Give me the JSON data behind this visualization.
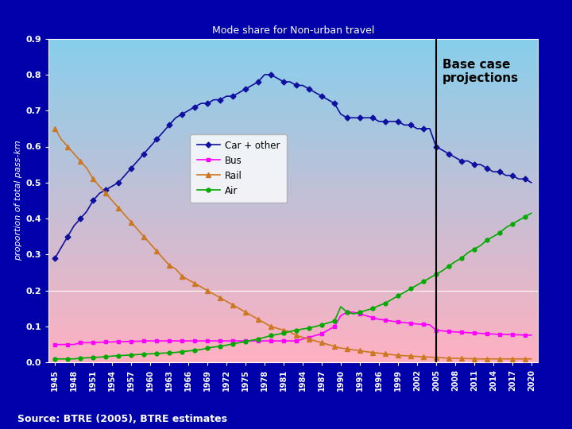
{
  "title": "Mode share for Non-urban travel",
  "ylabel": "proportion of total pass-km",
  "source_text": "Source: BTRE (2005), BTRE estimates",
  "annotation_text": "Base case\nprojections",
  "vertical_line_year": 2005,
  "outer_bg": "#0000AA",
  "plot_bg_top": "#87CEEB",
  "plot_bg_bottom": "#FFB0C0",
  "gradient_split": 0.2,
  "ylim": [
    0.0,
    0.9
  ],
  "yticks": [
    0.0,
    0.1,
    0.2,
    0.3,
    0.4,
    0.5,
    0.6,
    0.7,
    0.8,
    0.9
  ],
  "years": [
    1945,
    1946,
    1947,
    1948,
    1949,
    1950,
    1951,
    1952,
    1953,
    1954,
    1955,
    1956,
    1957,
    1958,
    1959,
    1960,
    1961,
    1962,
    1963,
    1964,
    1965,
    1966,
    1967,
    1968,
    1969,
    1970,
    1971,
    1972,
    1973,
    1974,
    1975,
    1976,
    1977,
    1978,
    1979,
    1980,
    1981,
    1982,
    1983,
    1984,
    1985,
    1986,
    1987,
    1988,
    1989,
    1990,
    1991,
    1992,
    1993,
    1994,
    1995,
    1996,
    1997,
    1998,
    1999,
    2000,
    2001,
    2002,
    2003,
    2004,
    2005,
    2006,
    2007,
    2008,
    2009,
    2010,
    2011,
    2012,
    2013,
    2014,
    2015,
    2016,
    2017,
    2018,
    2019,
    2020
  ],
  "car": [
    0.29,
    0.32,
    0.35,
    0.38,
    0.4,
    0.42,
    0.45,
    0.47,
    0.48,
    0.49,
    0.5,
    0.52,
    0.54,
    0.56,
    0.58,
    0.6,
    0.62,
    0.64,
    0.66,
    0.68,
    0.69,
    0.7,
    0.71,
    0.72,
    0.72,
    0.73,
    0.73,
    0.74,
    0.74,
    0.75,
    0.76,
    0.77,
    0.78,
    0.8,
    0.8,
    0.79,
    0.78,
    0.78,
    0.77,
    0.77,
    0.76,
    0.75,
    0.74,
    0.73,
    0.72,
    0.69,
    0.68,
    0.68,
    0.68,
    0.68,
    0.68,
    0.67,
    0.67,
    0.67,
    0.67,
    0.66,
    0.66,
    0.65,
    0.65,
    0.65,
    0.6,
    0.59,
    0.58,
    0.57,
    0.56,
    0.56,
    0.55,
    0.55,
    0.54,
    0.53,
    0.53,
    0.52,
    0.52,
    0.51,
    0.51,
    0.5
  ],
  "bus": [
    0.05,
    0.05,
    0.05,
    0.05,
    0.055,
    0.055,
    0.055,
    0.056,
    0.057,
    0.057,
    0.058,
    0.058,
    0.059,
    0.059,
    0.06,
    0.06,
    0.06,
    0.06,
    0.06,
    0.06,
    0.06,
    0.06,
    0.06,
    0.06,
    0.06,
    0.06,
    0.06,
    0.06,
    0.06,
    0.06,
    0.06,
    0.06,
    0.06,
    0.06,
    0.06,
    0.06,
    0.06,
    0.06,
    0.06,
    0.065,
    0.07,
    0.075,
    0.08,
    0.09,
    0.1,
    0.13,
    0.14,
    0.14,
    0.135,
    0.13,
    0.125,
    0.12,
    0.118,
    0.115,
    0.113,
    0.111,
    0.109,
    0.107,
    0.106,
    0.105,
    0.09,
    0.088,
    0.086,
    0.085,
    0.084,
    0.083,
    0.082,
    0.081,
    0.08,
    0.079,
    0.078,
    0.078,
    0.077,
    0.077,
    0.076,
    0.076
  ],
  "rail": [
    0.65,
    0.62,
    0.6,
    0.58,
    0.56,
    0.54,
    0.51,
    0.49,
    0.47,
    0.45,
    0.43,
    0.41,
    0.39,
    0.37,
    0.35,
    0.33,
    0.31,
    0.29,
    0.27,
    0.26,
    0.24,
    0.23,
    0.22,
    0.21,
    0.2,
    0.19,
    0.18,
    0.17,
    0.16,
    0.15,
    0.14,
    0.13,
    0.12,
    0.11,
    0.1,
    0.095,
    0.09,
    0.085,
    0.075,
    0.07,
    0.065,
    0.06,
    0.055,
    0.05,
    0.045,
    0.04,
    0.038,
    0.035,
    0.033,
    0.03,
    0.028,
    0.026,
    0.024,
    0.022,
    0.02,
    0.019,
    0.018,
    0.017,
    0.016,
    0.015,
    0.014,
    0.013,
    0.012,
    0.012,
    0.011,
    0.011,
    0.01,
    0.01,
    0.01,
    0.01,
    0.01,
    0.01,
    0.01,
    0.01,
    0.01,
    0.01
  ],
  "air": [
    0.01,
    0.01,
    0.01,
    0.01,
    0.012,
    0.013,
    0.014,
    0.015,
    0.016,
    0.018,
    0.019,
    0.02,
    0.021,
    0.022,
    0.023,
    0.024,
    0.025,
    0.026,
    0.027,
    0.028,
    0.03,
    0.032,
    0.034,
    0.036,
    0.04,
    0.043,
    0.045,
    0.048,
    0.052,
    0.055,
    0.058,
    0.062,
    0.065,
    0.07,
    0.075,
    0.078,
    0.082,
    0.086,
    0.09,
    0.093,
    0.096,
    0.1,
    0.105,
    0.11,
    0.115,
    0.155,
    0.14,
    0.135,
    0.14,
    0.145,
    0.15,
    0.158,
    0.165,
    0.175,
    0.185,
    0.195,
    0.205,
    0.215,
    0.225,
    0.235,
    0.245,
    0.255,
    0.268,
    0.28,
    0.29,
    0.305,
    0.315,
    0.325,
    0.34,
    0.35,
    0.36,
    0.375,
    0.385,
    0.395,
    0.405,
    0.415
  ],
  "car_color": "#1010A0",
  "bus_color": "#FF00FF",
  "rail_color": "#CC7722",
  "air_color": "#00AA00",
  "vline_color": "#000000",
  "hline_color": "#FFFFFF",
  "tick_label_color": "#FFFFFF",
  "title_color": "#FFFFFF",
  "ylabel_color": "#FFFFFF",
  "source_color": "#FFFFFF",
  "spine_color": "#FFFFFF"
}
